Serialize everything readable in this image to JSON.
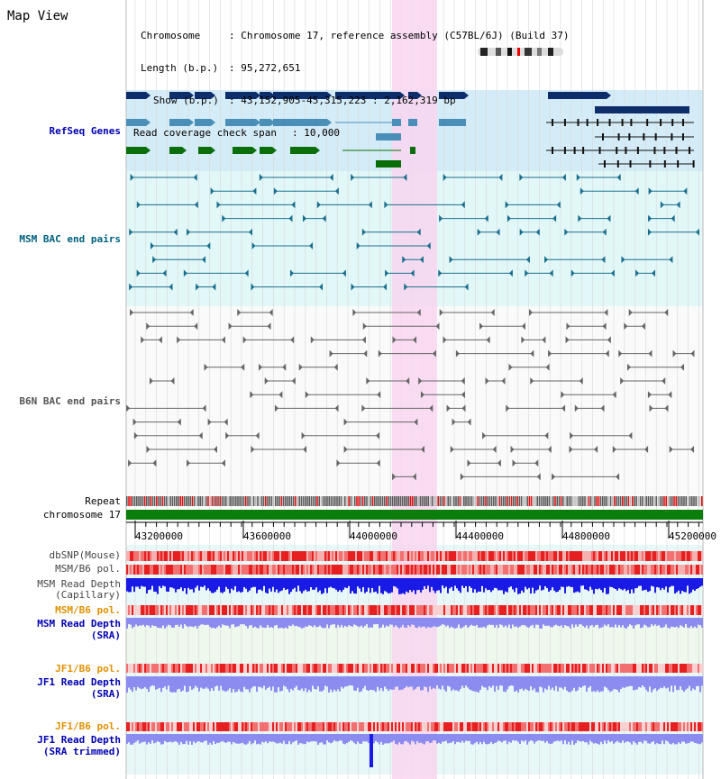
{
  "app": {
    "title": "Map View"
  },
  "header": {
    "chromosome_key": "Chromosome",
    "chromosome_value": "Chromosome 17, reference assembly (C57BL/6J) (Build 37)",
    "length_key": "Length (b.p.)",
    "length_value": "95,272,651",
    "show_key": "Show (b.p.)",
    "show_value": "43,152,905-45,315,223 : 2,162,319 bp",
    "coverage_key": "Read coverage check span",
    "coverage_value": "10,000"
  },
  "tracks": {
    "refseq": "RefSeq Genes",
    "msm_bac": "MSM BAC end pairs",
    "b6n_bac": "B6N BAC end pairs",
    "repeat": "Repeat",
    "chromosome": "chromosome 17",
    "dbsnp": "dbSNP(Mouse)",
    "msm_b6_pol": "MSM/B6 pol.",
    "msm_depth_cap_1": "MSM Read Depth",
    "msm_depth_cap_2": "(Capillary)",
    "msm_b6_pol2": "MSM/B6 pol.",
    "msm_depth_sra_1": "MSM Read Depth",
    "msm_depth_sra_2": "(SRA)",
    "jf1_b6_pol": "JF1/B6 pol.",
    "jf1_depth_sra_1": "JF1 Read Depth",
    "jf1_depth_sra_2": "(SRA)",
    "jf1_b6_pol2": "JF1/B6 pol.",
    "jf1_depth_trim_1": "JF1 Read Depth",
    "jf1_depth_trim_2": "(SRA trimmed)"
  },
  "axis": {
    "ticks": [
      "43200000",
      "43600000",
      "44000000",
      "44400000",
      "44800000",
      "45200000"
    ]
  },
  "colors": {
    "refseq_dark": "#0d2d6b",
    "refseq_mid": "#4a8fb8",
    "refseq_green": "#0a6e0a",
    "msm_feat": "#1a6f8f",
    "b6n_feat": "#666666",
    "highlight": "#f8d6f0",
    "chrom_green": "#0a7d0a",
    "depth_blue": "#1a1ae6",
    "depth_light": "#8c8cf0",
    "label_blue": "#0000b0",
    "label_teal": "#006080",
    "label_orange": "#e09000"
  }
}
